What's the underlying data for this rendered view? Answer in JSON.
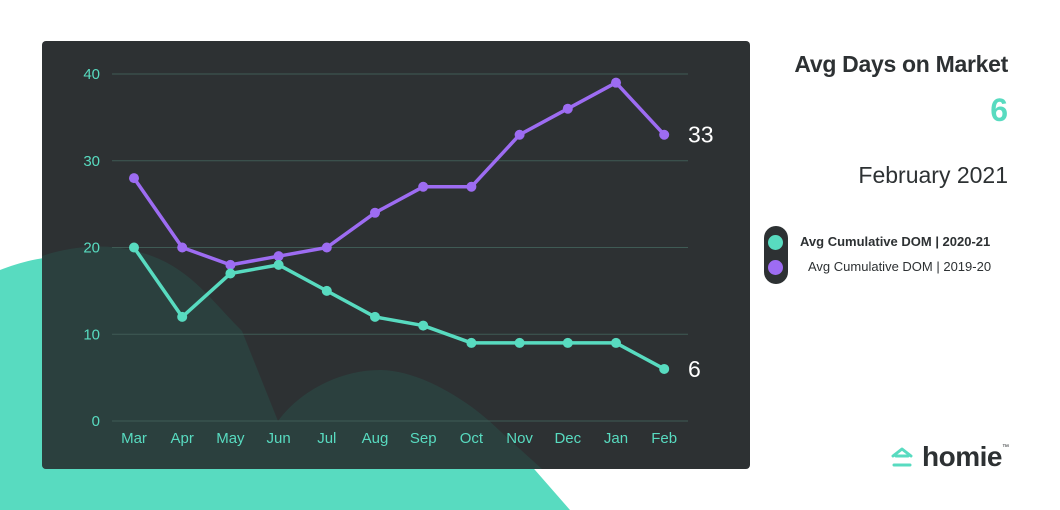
{
  "header": {
    "title": "Avg Days on Market",
    "value": "6",
    "period": "February 2021"
  },
  "legend": [
    {
      "label": "Avg Cumulative DOM  |  2020-21",
      "color": "#58dbc0"
    },
    {
      "label": "Avg Cumulative DOM  |  2019-20",
      "color": "#9d6cf2"
    }
  ],
  "brand": {
    "name": "homie",
    "tm": "™",
    "icon": "homie-house-icon"
  },
  "colors": {
    "panel": "#2d3133",
    "accent": "#58dbc0",
    "purple": "#9d6cf2",
    "grid": "#3f5b55"
  },
  "chart_data": {
    "type": "line",
    "categories": [
      "Mar",
      "Apr",
      "May",
      "Jun",
      "Jul",
      "Aug",
      "Sep",
      "Oct",
      "Nov",
      "Dec",
      "Jan",
      "Feb"
    ],
    "series": [
      {
        "name": "Avg Cumulative DOM  |  2020-21",
        "color": "#58dbc0",
        "values": [
          20,
          12,
          17,
          18,
          15,
          12,
          11,
          9,
          9,
          9,
          9,
          6
        ]
      },
      {
        "name": "Avg Cumulative DOM  |  2019-20",
        "color": "#9d6cf2",
        "values": [
          28,
          20,
          18,
          19,
          20,
          24,
          27,
          27,
          33,
          36,
          39,
          33
        ]
      }
    ],
    "yticks": [
      0,
      10,
      20,
      30,
      40
    ],
    "ylim": [
      0,
      40
    ],
    "end_labels": [
      "6",
      "33"
    ],
    "grid": true,
    "title": "",
    "xlabel": "",
    "ylabel": ""
  }
}
